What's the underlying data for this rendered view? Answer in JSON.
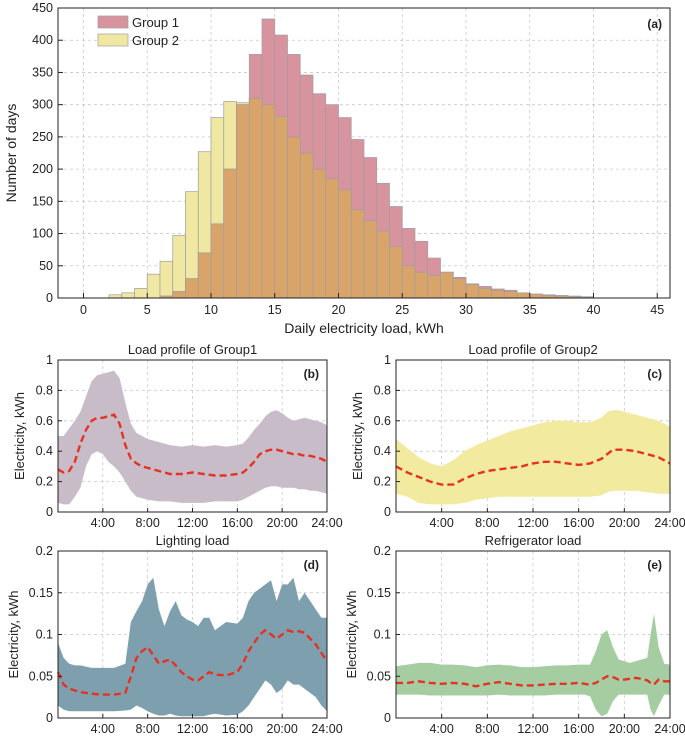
{
  "colors": {
    "group1_fill": "#d7939e",
    "group2_fill": "#f0e7a3",
    "overlap_fill": "#d9a46a",
    "group1_band": "#c8bcc8",
    "group2_band": "#f1ea9f",
    "lighting_band": "#7e9fae",
    "refrig_band": "#a6cca2",
    "mean_line": "#e53224",
    "grid": "#c8c8c8"
  },
  "chart_data": [
    {
      "id": "a",
      "type": "bar",
      "panel_label": "(a)",
      "title": "",
      "xlabel": "Daily electricity load, kWh",
      "ylabel": "Number of days",
      "xlim": [
        -2,
        46
      ],
      "ylim": [
        0,
        450
      ],
      "xticks": [
        "0",
        "5",
        "10",
        "15",
        "20",
        "25",
        "30",
        "35",
        "40",
        "45"
      ],
      "yticks": [
        "0",
        "50",
        "100",
        "150",
        "200",
        "250",
        "300",
        "350",
        "400",
        "450"
      ],
      "bin_width": 1,
      "bin_starts": [
        2,
        3,
        4,
        5,
        6,
        7,
        8,
        9,
        10,
        11,
        12,
        13,
        14,
        15,
        16,
        17,
        18,
        19,
        20,
        21,
        22,
        23,
        24,
        25,
        26,
        27,
        28,
        29,
        30,
        31,
        32,
        33,
        34,
        35,
        36,
        37,
        38,
        39
      ],
      "grid": true,
      "legend_position": "top-left",
      "series": [
        {
          "name": "Group 1",
          "values": [
            0,
            0,
            0,
            0,
            3,
            10,
            30,
            70,
            115,
            200,
            300,
            378,
            433,
            408,
            378,
            346,
            317,
            300,
            280,
            246,
            218,
            178,
            142,
            108,
            88,
            62,
            40,
            32,
            22,
            18,
            14,
            12,
            8,
            6,
            4,
            3,
            2,
            1
          ]
        },
        {
          "name": "Group 2",
          "values": [
            5,
            8,
            15,
            37,
            57,
            97,
            165,
            227,
            280,
            305,
            303,
            310,
            300,
            282,
            250,
            225,
            200,
            185,
            168,
            137,
            120,
            104,
            80,
            50,
            40,
            35,
            40,
            30,
            21,
            15,
            12,
            10,
            8,
            6,
            5,
            4,
            3,
            2
          ]
        }
      ]
    },
    {
      "id": "b",
      "type": "area",
      "panel_label": "(b)",
      "title": "Load profile of Group1",
      "xlabel": "",
      "ylabel": "Electricity, kWh",
      "xlim": [
        0,
        24
      ],
      "ylim": [
        0,
        1
      ],
      "xticks": [
        "4:00",
        "8:00",
        "12:00",
        "16:00",
        "20:00",
        "24:00"
      ],
      "yticks": [
        "0",
        "0.2",
        "0.4",
        "0.6",
        "0.8",
        "1"
      ],
      "grid": true,
      "x": [
        0,
        0.5,
        1,
        1.5,
        2,
        2.5,
        3,
        3.5,
        4,
        4.5,
        5,
        5.5,
        6,
        6.5,
        7,
        7.5,
        8,
        9,
        10,
        11,
        12,
        13,
        14,
        15,
        16,
        16.5,
        17,
        17.5,
        18,
        18.5,
        19,
        19.5,
        20,
        20.5,
        21,
        21.5,
        22,
        22.5,
        23,
        23.5,
        24
      ],
      "mean": [
        0.28,
        0.26,
        0.27,
        0.33,
        0.45,
        0.54,
        0.6,
        0.62,
        0.62,
        0.63,
        0.64,
        0.58,
        0.44,
        0.35,
        0.32,
        0.3,
        0.29,
        0.27,
        0.25,
        0.25,
        0.26,
        0.25,
        0.24,
        0.24,
        0.25,
        0.26,
        0.29,
        0.33,
        0.38,
        0.4,
        0.41,
        0.41,
        0.4,
        0.39,
        0.38,
        0.38,
        0.37,
        0.37,
        0.36,
        0.35,
        0.33
      ],
      "upper": [
        0.5,
        0.5,
        0.55,
        0.6,
        0.66,
        0.76,
        0.86,
        0.9,
        0.91,
        0.92,
        0.93,
        0.88,
        0.72,
        0.58,
        0.52,
        0.5,
        0.48,
        0.46,
        0.44,
        0.43,
        0.44,
        0.43,
        0.44,
        0.43,
        0.44,
        0.45,
        0.49,
        0.54,
        0.58,
        0.63,
        0.66,
        0.67,
        0.65,
        0.62,
        0.6,
        0.61,
        0.62,
        0.61,
        0.6,
        0.59,
        0.57
      ],
      "lower": [
        0.06,
        0.05,
        0.05,
        0.1,
        0.16,
        0.3,
        0.38,
        0.4,
        0.38,
        0.33,
        0.3,
        0.26,
        0.2,
        0.14,
        0.1,
        0.09,
        0.08,
        0.07,
        0.07,
        0.06,
        0.06,
        0.06,
        0.07,
        0.07,
        0.07,
        0.08,
        0.1,
        0.12,
        0.14,
        0.16,
        0.17,
        0.17,
        0.16,
        0.16,
        0.16,
        0.15,
        0.15,
        0.14,
        0.14,
        0.13,
        0.12
      ],
      "band_color_key": "group1_band"
    },
    {
      "id": "c",
      "type": "area",
      "panel_label": "(c)",
      "title": "Load profile of Group2",
      "xlabel": "",
      "ylabel": "Electricity, kWh",
      "xlim": [
        0,
        24
      ],
      "ylim": [
        0,
        1
      ],
      "xticks": [
        "4:00",
        "8:00",
        "12:00",
        "16:00",
        "20:00",
        "24:00"
      ],
      "yticks": [
        "0",
        "0.2",
        "0.4",
        "0.6",
        "0.8",
        "1"
      ],
      "grid": true,
      "x": [
        0,
        1,
        2,
        3,
        4,
        5,
        6,
        7,
        8,
        9,
        10,
        11,
        12,
        13,
        14,
        15,
        16,
        17,
        18,
        18.5,
        19,
        19.5,
        20,
        21,
        22,
        23,
        24
      ],
      "mean": [
        0.3,
        0.26,
        0.23,
        0.2,
        0.18,
        0.18,
        0.22,
        0.25,
        0.27,
        0.28,
        0.29,
        0.3,
        0.32,
        0.33,
        0.33,
        0.32,
        0.31,
        0.32,
        0.35,
        0.38,
        0.41,
        0.41,
        0.41,
        0.4,
        0.38,
        0.36,
        0.32
      ],
      "upper": [
        0.48,
        0.42,
        0.36,
        0.32,
        0.3,
        0.34,
        0.4,
        0.44,
        0.47,
        0.5,
        0.53,
        0.55,
        0.57,
        0.59,
        0.6,
        0.6,
        0.59,
        0.59,
        0.62,
        0.66,
        0.67,
        0.67,
        0.66,
        0.64,
        0.62,
        0.6,
        0.56
      ],
      "lower": [
        0.12,
        0.1,
        0.06,
        0.05,
        0.05,
        0.05,
        0.06,
        0.08,
        0.09,
        0.1,
        0.1,
        0.1,
        0.1,
        0.1,
        0.1,
        0.1,
        0.1,
        0.1,
        0.11,
        0.13,
        0.14,
        0.14,
        0.14,
        0.14,
        0.13,
        0.12,
        0.12
      ],
      "band_color_key": "group2_band"
    },
    {
      "id": "d",
      "type": "area",
      "panel_label": "(d)",
      "title": "Lighting load",
      "xlabel": "",
      "ylabel": "Electricity, kWh",
      "xlim": [
        0,
        24
      ],
      "ylim": [
        0,
        0.2
      ],
      "xticks": [
        "4:00",
        "8:00",
        "12:00",
        "16:00",
        "20:00",
        "24:00"
      ],
      "yticks": [
        "0",
        "0.05",
        "0.1",
        "0.15",
        "0.2"
      ],
      "grid": true,
      "x": [
        0,
        0.5,
        1,
        1.5,
        2,
        3,
        4,
        5,
        6,
        6.5,
        7,
        7.5,
        8,
        8.5,
        9,
        9.5,
        10,
        10.5,
        11,
        11.5,
        12,
        12.5,
        13,
        13.5,
        14,
        15,
        16,
        16.5,
        17,
        17.5,
        18,
        18.5,
        19,
        19.5,
        20,
        20.5,
        21,
        21.5,
        22,
        22.5,
        23,
        23.5,
        24
      ],
      "mean": [
        0.055,
        0.04,
        0.035,
        0.033,
        0.031,
        0.029,
        0.028,
        0.028,
        0.03,
        0.05,
        0.072,
        0.08,
        0.085,
        0.075,
        0.065,
        0.068,
        0.07,
        0.063,
        0.055,
        0.05,
        0.046,
        0.045,
        0.05,
        0.055,
        0.052,
        0.051,
        0.055,
        0.065,
        0.08,
        0.09,
        0.1,
        0.105,
        0.1,
        0.095,
        0.1,
        0.105,
        0.103,
        0.104,
        0.102,
        0.095,
        0.088,
        0.078,
        0.068
      ],
      "upper": [
        0.09,
        0.072,
        0.065,
        0.063,
        0.063,
        0.06,
        0.06,
        0.06,
        0.065,
        0.115,
        0.128,
        0.14,
        0.16,
        0.168,
        0.13,
        0.11,
        0.128,
        0.14,
        0.123,
        0.118,
        0.115,
        0.11,
        0.12,
        0.12,
        0.105,
        0.115,
        0.113,
        0.12,
        0.14,
        0.15,
        0.155,
        0.16,
        0.165,
        0.14,
        0.16,
        0.16,
        0.168,
        0.14,
        0.15,
        0.14,
        0.13,
        0.12,
        0.12
      ],
      "lower": [
        0.015,
        0.01,
        0.008,
        0.008,
        0.008,
        0.008,
        0.008,
        0.008,
        0.009,
        0.01,
        0.015,
        0.012,
        0.008,
        0.005,
        0.003,
        0.003,
        0.005,
        0.003,
        0.002,
        0.002,
        0.002,
        0.002,
        0.002,
        0.004,
        0.005,
        0.003,
        0.004,
        0.008,
        0.015,
        0.025,
        0.035,
        0.045,
        0.04,
        0.03,
        0.035,
        0.045,
        0.04,
        0.04,
        0.035,
        0.03,
        0.025,
        0.015,
        0.008
      ],
      "band_color_key": "lighting_band"
    },
    {
      "id": "e",
      "type": "area",
      "panel_label": "(e)",
      "title": "Refrigerator load",
      "xlabel": "",
      "ylabel": "Electricity, kWh",
      "xlim": [
        0,
        24
      ],
      "ylim": [
        0,
        0.2
      ],
      "xticks": [
        "4:00",
        "8:00",
        "12:00",
        "16:00",
        "20:00",
        "24:00"
      ],
      "yticks": [
        "0",
        "0.05",
        "0.1",
        "0.15",
        "0.2"
      ],
      "grid": true,
      "x": [
        0,
        1,
        2,
        3,
        4,
        5,
        6,
        7,
        8,
        9,
        10,
        11,
        12,
        13,
        14,
        15,
        16,
        16.5,
        17,
        17.5,
        18,
        18.5,
        19,
        19.5,
        20,
        20.5,
        21,
        21.5,
        22,
        22.3,
        22.6,
        23,
        23.5,
        24
      ],
      "mean": [
        0.042,
        0.042,
        0.044,
        0.042,
        0.041,
        0.042,
        0.041,
        0.038,
        0.041,
        0.043,
        0.041,
        0.039,
        0.039,
        0.04,
        0.041,
        0.041,
        0.042,
        0.041,
        0.04,
        0.042,
        0.046,
        0.05,
        0.049,
        0.046,
        0.046,
        0.047,
        0.048,
        0.047,
        0.045,
        0.042,
        0.04,
        0.046,
        0.044,
        0.044
      ],
      "upper": [
        0.062,
        0.064,
        0.066,
        0.066,
        0.064,
        0.064,
        0.063,
        0.061,
        0.063,
        0.064,
        0.063,
        0.061,
        0.061,
        0.062,
        0.063,
        0.063,
        0.064,
        0.064,
        0.064,
        0.08,
        0.1,
        0.105,
        0.085,
        0.07,
        0.068,
        0.066,
        0.068,
        0.07,
        0.072,
        0.1,
        0.125,
        0.085,
        0.065,
        0.064
      ],
      "lower": [
        0.028,
        0.028,
        0.028,
        0.027,
        0.027,
        0.027,
        0.027,
        0.027,
        0.027,
        0.028,
        0.027,
        0.027,
        0.027,
        0.027,
        0.028,
        0.028,
        0.028,
        0.028,
        0.026,
        0.01,
        0.002,
        0.005,
        0.02,
        0.028,
        0.028,
        0.028,
        0.028,
        0.028,
        0.028,
        0.01,
        0.002,
        0.015,
        0.028,
        0.028
      ],
      "band_color_key": "refrig_band"
    }
  ]
}
